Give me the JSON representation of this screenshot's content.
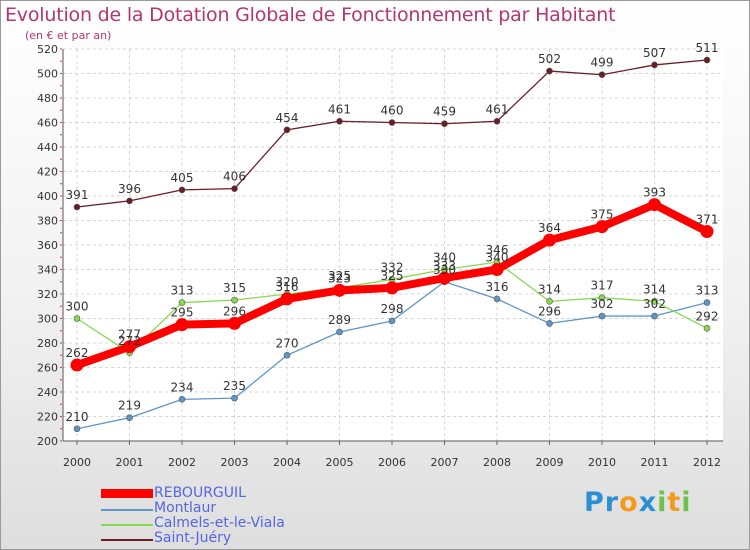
{
  "chart_data": {
    "type": "line",
    "title": "Evolution de la Dotation Globale de Fonctionnement par Habitant",
    "subtitle": "(en € et par an)",
    "xlabel": "",
    "ylabel": "",
    "ylim": [
      200,
      520
    ],
    "y_ticks": [
      200,
      220,
      240,
      260,
      280,
      300,
      320,
      340,
      360,
      380,
      400,
      420,
      440,
      460,
      480,
      500,
      520
    ],
    "categories": [
      "2000",
      "2001",
      "2002",
      "2003",
      "2004",
      "2005",
      "2006",
      "2007",
      "2008",
      "2009",
      "2010",
      "2011",
      "2012"
    ],
    "grid": true,
    "legend_position": "bottom-left",
    "series": [
      {
        "name": "Saint-Juéry",
        "color": "#6b1c24",
        "values": [
          391,
          396,
          405,
          406,
          454,
          461,
          460,
          459,
          461,
          502,
          499,
          507,
          511
        ]
      },
      {
        "name": "Montlaur",
        "color": "#5e96c9",
        "values": [
          210,
          219,
          234,
          235,
          270,
          289,
          298,
          330,
          316,
          296,
          302,
          302,
          313
        ]
      },
      {
        "name": "Calmels-et-le-Viala",
        "color": "#88d850",
        "values": [
          300,
          272,
          313,
          315,
          320,
          325,
          332,
          340,
          346,
          314,
          317,
          314,
          292
        ]
      },
      {
        "name": "REBOURGUIL",
        "color": "#ff0000",
        "values": [
          262,
          277,
          295,
          296,
          316,
          323,
          325,
          333,
          340,
          364,
          375,
          393,
          371
        ]
      }
    ],
    "legend": [
      {
        "label": "REBOURGUIL",
        "color": "#ff0000"
      },
      {
        "label": "Montlaur",
        "color": "#5e96c9"
      },
      {
        "label": "Calmels-et-le-Viala",
        "color": "#88d850"
      },
      {
        "label": "Saint-Juéry",
        "color": "#6b1c24"
      }
    ]
  },
  "branding": {
    "logo_letters": [
      {
        "char": "P",
        "color": "#2b8fd6"
      },
      {
        "char": "r",
        "color": "#2b8fd6"
      },
      {
        "char": "o",
        "color": "#f39a1e"
      },
      {
        "char": "x",
        "color": "#2b8fd6"
      },
      {
        "char": "i",
        "color": "#6cc24a"
      },
      {
        "char": "t",
        "color": "#f39a1e"
      },
      {
        "char": "i",
        "color": "#6cc24a"
      }
    ]
  }
}
